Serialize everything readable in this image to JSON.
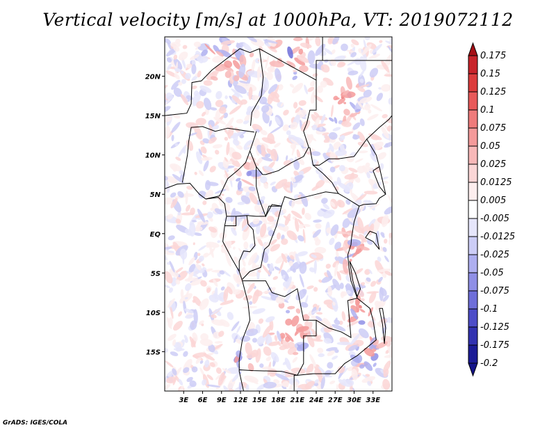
{
  "title": "Vertical velocity [m/s] at 1000hPa, VT: 2019072112",
  "credit": "GrADS: IGES/COLA",
  "map": {
    "lon_range": [
      0,
      36
    ],
    "lat_range": [
      -20,
      25
    ],
    "lon_ticks": [
      {
        "value": 3,
        "label": "3E"
      },
      {
        "value": 6,
        "label": "6E"
      },
      {
        "value": 9,
        "label": "9E"
      },
      {
        "value": 12,
        "label": "12E"
      },
      {
        "value": 15,
        "label": "15E"
      },
      {
        "value": 18,
        "label": "18E"
      },
      {
        "value": 21,
        "label": "21E"
      },
      {
        "value": 24,
        "label": "24E"
      },
      {
        "value": 27,
        "label": "27E"
      },
      {
        "value": 30,
        "label": "30E"
      },
      {
        "value": 33,
        "label": "33E"
      }
    ],
    "lat_ticks": [
      {
        "value": 20,
        "label": "20N"
      },
      {
        "value": 15,
        "label": "15N"
      },
      {
        "value": 10,
        "label": "10N"
      },
      {
        "value": 5,
        "label": "5N"
      },
      {
        "value": 0,
        "label": "EQ"
      },
      {
        "value": -5,
        "label": "5S"
      },
      {
        "value": -10,
        "label": "10S"
      },
      {
        "value": -15,
        "label": "15S"
      }
    ]
  },
  "colorbar": {
    "levels": [
      "0.175",
      "0.15",
      "0.125",
      "0.1",
      "0.075",
      "0.05",
      "0.025",
      "0.0125",
      "0.005",
      "-0.005",
      "-0.0125",
      "-0.025",
      "-0.05",
      "-0.075",
      "-0.1",
      "-0.125",
      "-0.175",
      "-0.2"
    ],
    "colors": [
      "#a50f15",
      "#c8242a",
      "#dc3c3c",
      "#e85a5a",
      "#ef7b7b",
      "#f49a9a",
      "#f8b8b8",
      "#fbd6d6",
      "#fdeeee",
      "#ffffff",
      "#e6e6fb",
      "#cccdf6",
      "#aeaff0",
      "#8f8fe6",
      "#6e6ed9",
      "#4d4dc8",
      "#3232b0",
      "#1c1c96",
      "#14148a"
    ]
  },
  "colors": {
    "positive": "#e03030",
    "negative": "#4040d0",
    "boundary": "#000000"
  }
}
